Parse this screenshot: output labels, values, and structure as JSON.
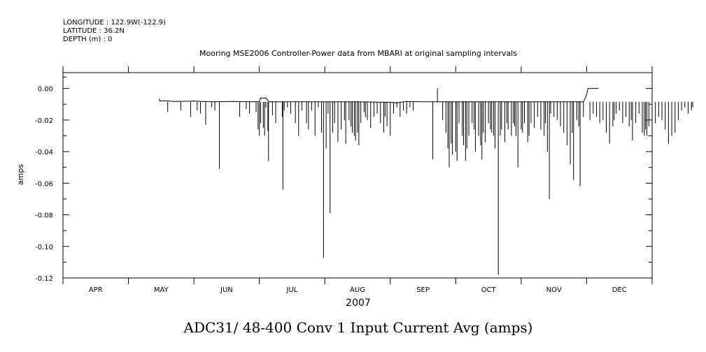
{
  "header": {
    "longitude": "LONGITUDE : 122.9W(-122.9)",
    "latitude": "LATITUDE : 36.2N",
    "depth": "DEPTH (m) : 0"
  },
  "chart_data": {
    "type": "line",
    "title": "Mooring MSE2006 Controller-Power data from MBARI at original sampling intervals",
    "xlabel": "2007",
    "ylabel": "amps",
    "bottom_label": "ADC31/ 48-400 Conv 1 Input Current  Avg (amps)",
    "x_ticks": [
      "APR",
      "MAY",
      "JUN",
      "JUL",
      "AUG",
      "SEP",
      "OCT",
      "NOV",
      "DEC"
    ],
    "y_ticks": [
      "0.00",
      "-0.02",
      "-0.04",
      "-0.06",
      "-0.08",
      "-0.10",
      "-0.12"
    ],
    "ylim": [
      -0.12,
      0.01
    ],
    "xlim_month": [
      3.5,
      12.5
    ],
    "baseline": -0.0085,
    "series": [
      {
        "color": "#000000",
        "points": [
          [
            4.97,
            -0.0065
          ],
          [
            4.98,
            -0.008
          ],
          [
            5.05,
            -0.0078
          ],
          [
            5.2,
            -0.0082
          ],
          [
            5.5,
            -0.008
          ],
          [
            5.8,
            -0.0085
          ],
          [
            6.1,
            -0.0082
          ],
          [
            6.4,
            -0.0085
          ],
          [
            6.5,
            -0.0082
          ],
          [
            6.52,
            -0.006
          ],
          [
            6.55,
            -0.0062
          ],
          [
            6.6,
            -0.006
          ],
          [
            6.65,
            -0.0085
          ],
          [
            7.0,
            -0.0085
          ],
          [
            7.5,
            -0.0085
          ],
          [
            8.0,
            -0.0085
          ],
          [
            8.5,
            -0.0088
          ],
          [
            8.6,
            -0.0092
          ],
          [
            8.65,
            -0.0088
          ],
          [
            8.75,
            -0.0082
          ],
          [
            9.0,
            -0.0085
          ],
          [
            9.5,
            -0.0085
          ],
          [
            10.0,
            -0.0085
          ],
          [
            10.5,
            -0.0085
          ],
          [
            11.0,
            -0.0085
          ],
          [
            11.4,
            -0.0085
          ],
          [
            11.45,
            -0.0085
          ],
          [
            11.48,
            -0.006
          ],
          [
            11.5,
            -0.004
          ],
          [
            11.52,
            0.0
          ],
          [
            11.68,
            0.0
          ]
        ]
      }
    ],
    "spikes": [
      [
        5.1,
        -0.015
      ],
      [
        5.3,
        -0.014
      ],
      [
        5.45,
        -0.018
      ],
      [
        5.6,
        -0.016
      ],
      [
        5.55,
        -0.014
      ],
      [
        5.68,
        -0.023
      ],
      [
        5.77,
        -0.012
      ],
      [
        5.82,
        -0.014
      ],
      [
        5.89,
        -0.051
      ],
      [
        6.2,
        -0.018
      ],
      [
        6.3,
        -0.013
      ],
      [
        6.35,
        -0.016
      ],
      [
        6.45,
        -0.015
      ],
      [
        6.48,
        -0.026
      ],
      [
        6.5,
        -0.03
      ],
      [
        6.52,
        -0.022
      ],
      [
        6.56,
        -0.025
      ],
      [
        6.58,
        -0.03
      ],
      [
        6.6,
        -0.012
      ],
      [
        6.63,
        -0.027
      ],
      [
        6.64,
        -0.046
      ],
      [
        6.7,
        -0.017
      ],
      [
        6.75,
        -0.022
      ],
      [
        6.85,
        -0.018
      ],
      [
        6.86,
        -0.064
      ],
      [
        6.88,
        -0.014
      ],
      [
        6.93,
        -0.012
      ],
      [
        6.98,
        -0.016
      ],
      [
        7.05,
        -0.022
      ],
      [
        7.1,
        -0.03
      ],
      [
        7.15,
        -0.014
      ],
      [
        7.22,
        -0.022
      ],
      [
        7.25,
        -0.026
      ],
      [
        7.3,
        -0.014
      ],
      [
        7.35,
        -0.03
      ],
      [
        7.4,
        -0.012
      ],
      [
        7.45,
        -0.028
      ],
      [
        7.48,
        -0.107
      ],
      [
        7.52,
        -0.038
      ],
      [
        7.55,
        -0.016
      ],
      [
        7.58,
        -0.079
      ],
      [
        7.62,
        -0.028
      ],
      [
        7.65,
        -0.022
      ],
      [
        7.7,
        -0.034
      ],
      [
        7.75,
        -0.026
      ],
      [
        7.8,
        -0.02
      ],
      [
        7.82,
        -0.035
      ],
      [
        7.87,
        -0.02
      ],
      [
        7.9,
        -0.024
      ],
      [
        7.92,
        -0.028
      ],
      [
        7.95,
        -0.03
      ],
      [
        7.97,
        -0.033
      ],
      [
        8.0,
        -0.028
      ],
      [
        8.02,
        -0.036
      ],
      [
        8.05,
        -0.022
      ],
      [
        8.1,
        -0.015
      ],
      [
        8.12,
        -0.018
      ],
      [
        8.15,
        -0.02
      ],
      [
        8.2,
        -0.025
      ],
      [
        8.25,
        -0.018
      ],
      [
        8.3,
        -0.016
      ],
      [
        8.35,
        -0.022
      ],
      [
        8.4,
        -0.028
      ],
      [
        8.42,
        -0.018
      ],
      [
        8.45,
        -0.024
      ],
      [
        8.5,
        -0.03
      ],
      [
        8.55,
        -0.016
      ],
      [
        8.6,
        -0.012
      ],
      [
        8.65,
        -0.018
      ],
      [
        8.7,
        -0.014
      ],
      [
        8.75,
        -0.016
      ],
      [
        8.8,
        -0.012
      ],
      [
        8.85,
        -0.014
      ],
      [
        9.15,
        -0.045
      ],
      [
        9.3,
        -0.02
      ],
      [
        9.35,
        -0.028
      ],
      [
        9.38,
        -0.038
      ],
      [
        9.4,
        -0.05
      ],
      [
        9.43,
        -0.035
      ],
      [
        9.45,
        -0.042
      ],
      [
        9.5,
        -0.04
      ],
      [
        9.52,
        -0.046
      ],
      [
        9.55,
        -0.022
      ],
      [
        9.6,
        -0.03
      ],
      [
        9.62,
        -0.036
      ],
      [
        9.65,
        -0.046
      ],
      [
        9.67,
        -0.038
      ],
      [
        9.7,
        -0.03
      ],
      [
        9.75,
        -0.022
      ],
      [
        9.78,
        -0.026
      ],
      [
        9.8,
        -0.04
      ],
      [
        9.85,
        -0.03
      ],
      [
        9.88,
        -0.036
      ],
      [
        9.9,
        -0.045
      ],
      [
        9.92,
        -0.028
      ],
      [
        9.95,
        -0.034
      ],
      [
        10.0,
        -0.022
      ],
      [
        10.03,
        -0.026
      ],
      [
        10.05,
        -0.028
      ],
      [
        10.08,
        -0.03
      ],
      [
        10.1,
        -0.038
      ],
      [
        10.15,
        -0.118
      ],
      [
        10.18,
        -0.03
      ],
      [
        10.2,
        -0.026
      ],
      [
        10.25,
        -0.034
      ],
      [
        10.28,
        -0.022
      ],
      [
        10.3,
        -0.026
      ],
      [
        10.35,
        -0.03
      ],
      [
        10.38,
        -0.022
      ],
      [
        10.4,
        -0.024
      ],
      [
        10.42,
        -0.03
      ],
      [
        10.45,
        -0.05
      ],
      [
        10.5,
        -0.026
      ],
      [
        10.52,
        -0.028
      ],
      [
        10.55,
        -0.022
      ],
      [
        10.6,
        -0.034
      ],
      [
        10.62,
        -0.03
      ],
      [
        10.65,
        -0.022
      ],
      [
        10.7,
        -0.025
      ],
      [
        10.75,
        -0.018
      ],
      [
        10.8,
        -0.026
      ],
      [
        10.85,
        -0.03
      ],
      [
        10.87,
        -0.022
      ],
      [
        10.9,
        -0.04
      ],
      [
        10.93,
        -0.07
      ],
      [
        10.95,
        -0.016
      ],
      [
        11.0,
        -0.018
      ],
      [
        11.05,
        -0.02
      ],
      [
        11.1,
        -0.024
      ],
      [
        11.15,
        -0.028
      ],
      [
        11.2,
        -0.036
      ],
      [
        11.25,
        -0.048
      ],
      [
        11.28,
        -0.028
      ],
      [
        11.3,
        -0.058
      ],
      [
        11.35,
        -0.02
      ],
      [
        11.38,
        -0.024
      ],
      [
        11.4,
        -0.062
      ],
      [
        11.45,
        -0.018
      ],
      [
        11.55,
        -0.02
      ],
      [
        11.6,
        -0.016
      ],
      [
        11.65,
        -0.018
      ],
      [
        11.7,
        -0.022
      ],
      [
        11.75,
        -0.02
      ],
      [
        11.8,
        -0.028
      ],
      [
        11.85,
        -0.035
      ],
      [
        11.9,
        -0.024
      ],
      [
        11.92,
        -0.02
      ],
      [
        11.95,
        -0.016
      ],
      [
        12.0,
        -0.014
      ],
      [
        12.05,
        -0.022
      ],
      [
        12.1,
        -0.018
      ],
      [
        12.15,
        -0.024
      ],
      [
        12.18,
        -0.02
      ],
      [
        12.2,
        -0.033
      ],
      [
        12.25,
        -0.022
      ],
      [
        12.3,
        -0.016
      ],
      [
        12.35,
        -0.028
      ],
      [
        12.38,
        -0.03
      ],
      [
        12.4,
        -0.026
      ],
      [
        12.42,
        -0.03
      ],
      [
        12.45,
        -0.024
      ],
      [
        12.5,
        -0.028
      ],
      [
        12.55,
        -0.022
      ],
      [
        12.6,
        -0.018
      ],
      [
        12.65,
        -0.02
      ],
      [
        12.7,
        -0.026
      ],
      [
        12.75,
        -0.035
      ],
      [
        12.8,
        -0.03
      ],
      [
        12.85,
        -0.028
      ],
      [
        12.9,
        -0.02
      ],
      [
        12.95,
        -0.014
      ],
      [
        13.0,
        -0.012
      ],
      [
        13.05,
        -0.016
      ],
      [
        13.1,
        -0.014
      ],
      [
        13.12,
        -0.012
      ]
    ]
  }
}
